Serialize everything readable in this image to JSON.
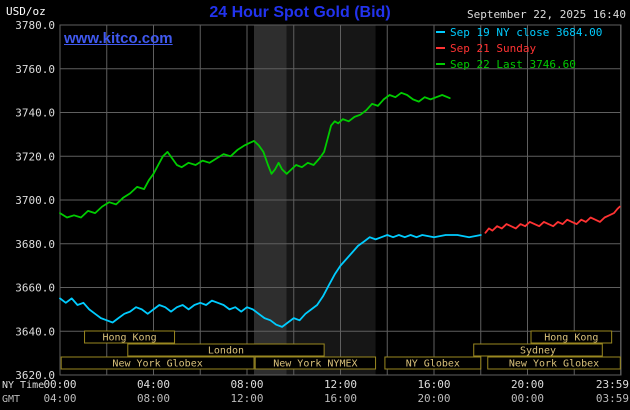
{
  "header": {
    "units_label": "USD/oz",
    "title": "24 Hour Spot Gold (Bid)",
    "title_color": "#2233ee",
    "datetime": "September 22, 2025 16:40",
    "datetime_color": "#dddddd",
    "watermark": "www.kitco.com",
    "watermark_color": "#4059f0",
    "legend": [
      {
        "label": "Sep 19 NY close 3684.00",
        "color": "#00ccff"
      },
      {
        "label": "Sep 21 Sunday",
        "color": "#ff3333"
      },
      {
        "label": "Sep 22 Last 3746.60",
        "color": "#00cc00"
      }
    ]
  },
  "axes": {
    "ny_time_label": "NY Time",
    "gmt_label": "GMT",
    "ny_ticks": [
      "00:00",
      "04:00",
      "08:00",
      "12:00",
      "16:00",
      "20:00",
      "23:59"
    ],
    "gmt_ticks": [
      "04:00",
      "08:00",
      "12:00",
      "16:00",
      "20:00",
      "00:00",
      "03:59"
    ]
  },
  "chart_data": {
    "type": "line",
    "title": "24 Hour Spot Gold (Bid)",
    "xlabel": "NY Time",
    "ylabel": "USD/oz",
    "ylim": [
      3620,
      3780
    ],
    "xlim_hours": [
      0,
      24
    ],
    "grid": true,
    "grid_color": "#5f5f5f",
    "plot_bg": "#000000",
    "tick_text_color": "#dddddd",
    "gmt_text_color": "#bbbbbb",
    "session_border_color": "#9a8820",
    "session_text_color": "#d8c07a",
    "y_ticks": [
      3620,
      3640,
      3660,
      3680,
      3700,
      3720,
      3740,
      3760,
      3780
    ],
    "x_grid_hours": [
      0,
      2,
      4,
      6,
      8,
      10,
      12,
      14,
      16,
      18,
      20,
      22,
      23.983
    ],
    "x_tick_hours": [
      0,
      4,
      8,
      12,
      16,
      20,
      23.983
    ],
    "bands": [
      {
        "start": 8.3,
        "end": 9.7,
        "color": "#2e2e2e"
      },
      {
        "start": 9.7,
        "end": 13.5,
        "color": "#161616"
      }
    ],
    "series": [
      {
        "name": "Sep 19 NY close 3684.00",
        "color": "#00ccff",
        "points": [
          [
            0,
            3655
          ],
          [
            0.25,
            3653
          ],
          [
            0.5,
            3655
          ],
          [
            0.75,
            3652
          ],
          [
            1,
            3653
          ],
          [
            1.25,
            3650
          ],
          [
            1.5,
            3648
          ],
          [
            1.75,
            3646
          ],
          [
            2,
            3645
          ],
          [
            2.25,
            3644
          ],
          [
            2.5,
            3646
          ],
          [
            2.75,
            3648
          ],
          [
            3,
            3649
          ],
          [
            3.25,
            3651
          ],
          [
            3.5,
            3650
          ],
          [
            3.75,
            3648
          ],
          [
            4,
            3650
          ],
          [
            4.25,
            3652
          ],
          [
            4.5,
            3651
          ],
          [
            4.75,
            3649
          ],
          [
            5,
            3651
          ],
          [
            5.25,
            3652
          ],
          [
            5.5,
            3650
          ],
          [
            5.75,
            3652
          ],
          [
            6,
            3653
          ],
          [
            6.25,
            3652
          ],
          [
            6.5,
            3654
          ],
          [
            6.75,
            3653
          ],
          [
            7,
            3652
          ],
          [
            7.25,
            3650
          ],
          [
            7.5,
            3651
          ],
          [
            7.75,
            3649
          ],
          [
            8,
            3651
          ],
          [
            8.25,
            3650
          ],
          [
            8.5,
            3648
          ],
          [
            8.75,
            3646
          ],
          [
            9,
            3645
          ],
          [
            9.25,
            3643
          ],
          [
            9.5,
            3642
          ],
          [
            9.75,
            3644
          ],
          [
            10,
            3646
          ],
          [
            10.25,
            3645
          ],
          [
            10.5,
            3648
          ],
          [
            10.75,
            3650
          ],
          [
            11,
            3652
          ],
          [
            11.25,
            3656
          ],
          [
            11.5,
            3661
          ],
          [
            11.75,
            3666
          ],
          [
            12,
            3670
          ],
          [
            12.25,
            3673
          ],
          [
            12.5,
            3676
          ],
          [
            12.75,
            3679
          ],
          [
            13,
            3681
          ],
          [
            13.25,
            3683
          ],
          [
            13.5,
            3682
          ],
          [
            13.75,
            3683
          ],
          [
            14,
            3684
          ],
          [
            14.25,
            3683
          ],
          [
            14.5,
            3684
          ],
          [
            14.75,
            3683
          ],
          [
            15,
            3684
          ],
          [
            15.25,
            3683
          ],
          [
            15.5,
            3684
          ],
          [
            16,
            3683
          ],
          [
            16.5,
            3684
          ],
          [
            17,
            3684
          ],
          [
            17.5,
            3683
          ],
          [
            18,
            3684
          ]
        ]
      },
      {
        "name": "Sep 21 Sunday",
        "color": "#ff3333",
        "points": [
          [
            18.2,
            3685
          ],
          [
            18.35,
            3687
          ],
          [
            18.5,
            3686
          ],
          [
            18.7,
            3688
          ],
          [
            18.9,
            3687
          ],
          [
            19.1,
            3689
          ],
          [
            19.3,
            3688
          ],
          [
            19.5,
            3687
          ],
          [
            19.7,
            3689
          ],
          [
            19.9,
            3688
          ],
          [
            20.1,
            3690
          ],
          [
            20.3,
            3689
          ],
          [
            20.5,
            3688
          ],
          [
            20.7,
            3690
          ],
          [
            20.9,
            3689
          ],
          [
            21.1,
            3688
          ],
          [
            21.3,
            3690
          ],
          [
            21.5,
            3689
          ],
          [
            21.7,
            3691
          ],
          [
            21.9,
            3690
          ],
          [
            22.1,
            3689
          ],
          [
            22.3,
            3691
          ],
          [
            22.5,
            3690
          ],
          [
            22.7,
            3692
          ],
          [
            22.9,
            3691
          ],
          [
            23.1,
            3690
          ],
          [
            23.3,
            3692
          ],
          [
            23.5,
            3693
          ],
          [
            23.7,
            3694
          ],
          [
            23.85,
            3696
          ],
          [
            23.95,
            3697
          ]
        ]
      },
      {
        "name": "Sep 22 Last 3746.60",
        "color": "#00cc00",
        "points": [
          [
            0,
            3694
          ],
          [
            0.3,
            3692
          ],
          [
            0.6,
            3693
          ],
          [
            0.9,
            3692
          ],
          [
            1.2,
            3695
          ],
          [
            1.5,
            3694
          ],
          [
            1.8,
            3697
          ],
          [
            2.1,
            3699
          ],
          [
            2.4,
            3698
          ],
          [
            2.7,
            3701
          ],
          [
            3,
            3703
          ],
          [
            3.3,
            3706
          ],
          [
            3.6,
            3705
          ],
          [
            3.8,
            3709
          ],
          [
            4,
            3712
          ],
          [
            4.2,
            3716
          ],
          [
            4.4,
            3720
          ],
          [
            4.6,
            3722
          ],
          [
            4.8,
            3719
          ],
          [
            5,
            3716
          ],
          [
            5.2,
            3715
          ],
          [
            5.5,
            3717
          ],
          [
            5.8,
            3716
          ],
          [
            6.1,
            3718
          ],
          [
            6.4,
            3717
          ],
          [
            6.7,
            3719
          ],
          [
            7,
            3721
          ],
          [
            7.3,
            3720
          ],
          [
            7.6,
            3723
          ],
          [
            7.9,
            3725
          ],
          [
            8.1,
            3726
          ],
          [
            8.3,
            3727
          ],
          [
            8.5,
            3725
          ],
          [
            8.7,
            3722
          ],
          [
            8.9,
            3716
          ],
          [
            9.05,
            3712
          ],
          [
            9.2,
            3714
          ],
          [
            9.35,
            3717
          ],
          [
            9.5,
            3714
          ],
          [
            9.7,
            3712
          ],
          [
            9.9,
            3714
          ],
          [
            10.1,
            3716
          ],
          [
            10.35,
            3715
          ],
          [
            10.6,
            3717
          ],
          [
            10.85,
            3716
          ],
          [
            11.1,
            3719
          ],
          [
            11.3,
            3722
          ],
          [
            11.45,
            3728
          ],
          [
            11.6,
            3734
          ],
          [
            11.75,
            3736
          ],
          [
            11.9,
            3735
          ],
          [
            12.1,
            3737
          ],
          [
            12.35,
            3736
          ],
          [
            12.6,
            3738
          ],
          [
            12.85,
            3739
          ],
          [
            13.1,
            3741
          ],
          [
            13.35,
            3744
          ],
          [
            13.6,
            3743
          ],
          [
            13.85,
            3746
          ],
          [
            14.1,
            3748
          ],
          [
            14.35,
            3747
          ],
          [
            14.6,
            3749
          ],
          [
            14.85,
            3748
          ],
          [
            15.1,
            3746
          ],
          [
            15.35,
            3745
          ],
          [
            15.6,
            3747
          ],
          [
            15.85,
            3746
          ],
          [
            16.1,
            3747
          ],
          [
            16.35,
            3748
          ],
          [
            16.67,
            3746.6
          ]
        ]
      }
    ],
    "sessions": [
      {
        "row": 0,
        "label": "Hong Kong",
        "start": 1.05,
        "end": 4.9
      },
      {
        "row": 0,
        "label": "Hong Kong",
        "start": 20.15,
        "end": 23.6
      },
      {
        "row": 1,
        "label": "London",
        "start": 2.9,
        "end": 11.3
      },
      {
        "row": 1,
        "label": "Sydney",
        "start": 17.7,
        "end": 23.2
      },
      {
        "row": 2,
        "label": "New York Globex",
        "start": 0.05,
        "end": 8.3
      },
      {
        "row": 2,
        "label": "New York NYMEX",
        "start": 8.35,
        "end": 13.5
      },
      {
        "row": 2,
        "label": "NY Globex",
        "start": 13.9,
        "end": 18.0
      },
      {
        "row": 2,
        "label": "New York Globex",
        "start": 18.3,
        "end": 23.97
      }
    ]
  }
}
